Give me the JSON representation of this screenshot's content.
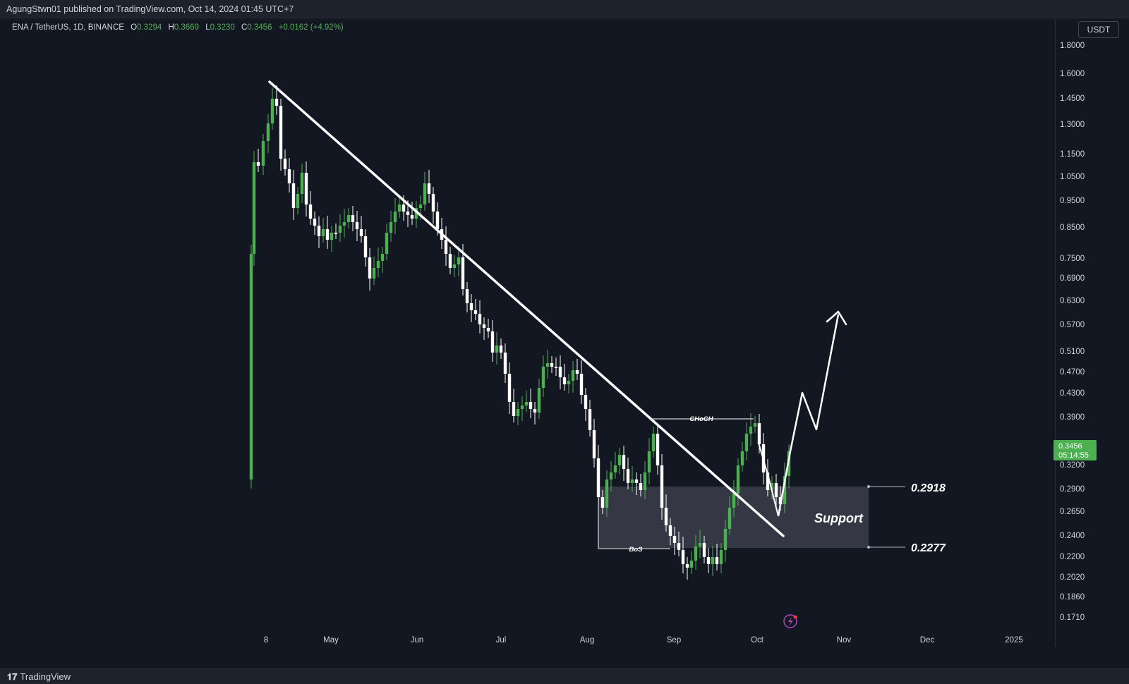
{
  "header": {
    "published_text": "AgungStwn01 published on TradingView.com, Oct 14, 2024 01:45 UTC+7"
  },
  "legend": {
    "pair": "ENA / TetherUS, 1D, BINANCE",
    "open_label": "O",
    "open": "0.3294",
    "high_label": "H",
    "high": "0.3669",
    "low_label": "L",
    "low": "0.3230",
    "close_label": "C",
    "close": "0.3456",
    "change": "+0.0162 (+4.92%)"
  },
  "currency": "USDT",
  "last_price": {
    "value": "0.3456",
    "countdown": "05:14:55",
    "color": "#4caf50"
  },
  "footer": {
    "brand_logo": "tv-logo-icon",
    "brand": "TradingView"
  },
  "colors": {
    "up": "#4caf50",
    "down": "#ffffff",
    "background": "#131722",
    "support_zone": "#3a3c48"
  },
  "chart_data": {
    "type": "candlestick",
    "x_ticks": [
      "8",
      "May",
      "Jun",
      "Jul",
      "Aug",
      "Sep",
      "Oct",
      "Nov",
      "Dec",
      "2025"
    ],
    "y_ticks": [
      "1.8000",
      "1.6000",
      "1.4500",
      "1.3000",
      "1.1500",
      "1.0500",
      "0.9500",
      "0.8500",
      "0.7500",
      "0.6900",
      "0.6300",
      "0.5700",
      "0.5100",
      "0.4700",
      "0.4300",
      "0.3900",
      "0.3200",
      "0.2900",
      "0.2650",
      "0.2400",
      "0.2200",
      "0.2020",
      "0.1860",
      "0.1710"
    ],
    "y_scale": "log",
    "annotations": {
      "choch_label": "CHoCH",
      "bos_label": "BoS",
      "support_label": "Support",
      "support_top": "0.2918",
      "support_bottom": "0.2277"
    }
  }
}
